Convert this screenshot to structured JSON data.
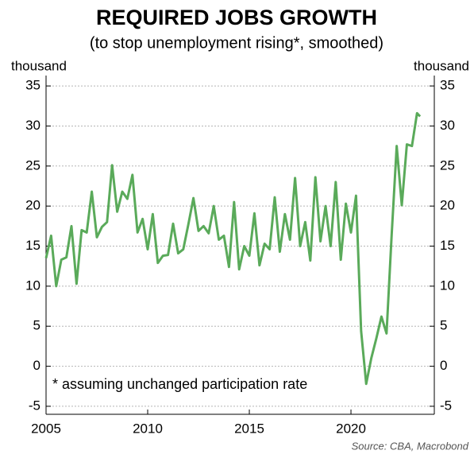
{
  "chart_data": {
    "type": "line",
    "title": "REQUIRED JOBS GROWTH",
    "subtitle": "(to stop unemployment rising*, smoothed)",
    "y_label": "thousand",
    "y2_label": "thousand",
    "annotation": "*  assuming unchanged participation rate",
    "source": "Source: CBA, Macrobond",
    "x": [
      2005.0,
      2005.25,
      2005.5,
      2005.75,
      2006.0,
      2006.25,
      2006.5,
      2006.75,
      2007.0,
      2007.25,
      2007.5,
      2007.75,
      2008.0,
      2008.25,
      2008.5,
      2008.75,
      2009.0,
      2009.25,
      2009.5,
      2009.75,
      2010.0,
      2010.25,
      2010.5,
      2010.75,
      2011.0,
      2011.25,
      2011.5,
      2011.75,
      2012.0,
      2012.25,
      2012.5,
      2012.75,
      2013.0,
      2013.25,
      2013.5,
      2013.75,
      2014.0,
      2014.25,
      2014.5,
      2014.75,
      2015.0,
      2015.25,
      2015.5,
      2015.75,
      2016.0,
      2016.25,
      2016.5,
      2016.75,
      2017.0,
      2017.25,
      2017.5,
      2017.75,
      2018.0,
      2018.25,
      2018.5,
      2018.75,
      2019.0,
      2019.25,
      2019.5,
      2019.75,
      2020.0,
      2020.25,
      2020.5,
      2020.75,
      2021.0,
      2021.25,
      2021.5,
      2021.75,
      2022.0,
      2022.25,
      2022.5,
      2022.75,
      2023.0,
      2023.25,
      2023.4
    ],
    "series": [
      {
        "name": "Required jobs growth",
        "color": "#5aaa5a",
        "values": [
          13.5,
          16.3,
          10.0,
          13.3,
          13.6,
          17.5,
          10.3,
          17.0,
          16.7,
          21.8,
          16.1,
          17.4,
          18.0,
          25.1,
          19.3,
          21.8,
          20.9,
          23.9,
          16.7,
          18.4,
          14.6,
          19.0,
          12.9,
          13.8,
          13.9,
          17.8,
          14.1,
          14.6,
          17.7,
          21.0,
          16.9,
          17.5,
          16.6,
          20.0,
          15.8,
          16.3,
          12.4,
          20.5,
          12.1,
          15.0,
          13.8,
          19.1,
          12.6,
          15.3,
          14.6,
          21.1,
          14.3,
          19.0,
          15.8,
          23.5,
          15.0,
          18.0,
          13.2,
          23.6,
          15.6,
          20.0,
          15.0,
          23.0,
          13.3,
          20.3,
          16.7,
          21.3,
          4.4,
          -2.2,
          1.0,
          3.5,
          6.2,
          4.1,
          16.3,
          27.5,
          20.1,
          27.7,
          27.5,
          31.6,
          31.2
        ]
      }
    ],
    "xlim": [
      2005,
      2024.1
    ],
    "xticks": [
      2005,
      2010,
      2015,
      2020
    ],
    "ylim": [
      -6,
      36.3
    ],
    "yticks": [
      -5,
      0,
      5,
      10,
      15,
      20,
      25,
      30,
      35
    ],
    "y2lim": [
      -6,
      36.3
    ],
    "y2ticks": [
      -5,
      0,
      5,
      10,
      15,
      20,
      25,
      30,
      35
    ],
    "grid": true
  }
}
